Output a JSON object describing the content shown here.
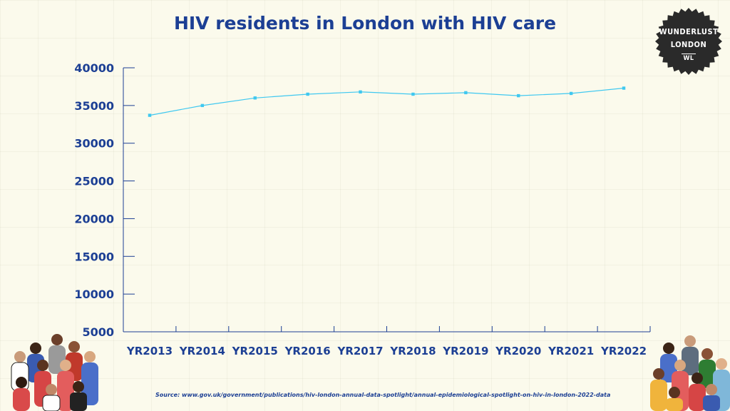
{
  "title": "HIV residents in London with HIV care",
  "logo": {
    "line1": "WUNDERLUST",
    "line2": "LONDON",
    "mark": "WL"
  },
  "source": "Source: www.gov.uk/government/publications/hiv-london-annual-data-spotlight/annual-epidemiological-spotlight-on-hiv-in-london-2022-data",
  "colors": {
    "title": "#1c3f94",
    "axis": "#1c3f94",
    "line": "#3fc8f0",
    "background": "#fbfaec"
  },
  "chart_data": {
    "type": "line",
    "title": "HIV residents in London with HIV care",
    "categories": [
      "YR2013",
      "YR2014",
      "YR2015",
      "YR2016",
      "YR2017",
      "YR2018",
      "YR2019",
      "YR2020",
      "YR2021",
      "YR2022"
    ],
    "series": [
      {
        "values": [
          33700,
          35000,
          36000,
          36500,
          36800,
          36500,
          36700,
          36300,
          36600,
          37300
        ]
      }
    ],
    "yticks": [
      "40000",
      "35000",
      "30000",
      "25000",
      "20000",
      "15000",
      "10000",
      "5000"
    ],
    "ylim": [
      5000,
      40000
    ],
    "grid": false,
    "legend": "none"
  }
}
